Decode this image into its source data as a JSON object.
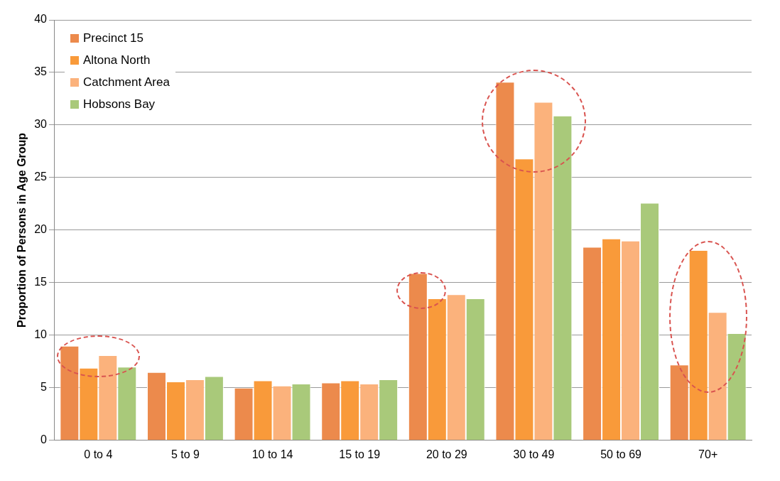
{
  "chart_data": {
    "type": "bar",
    "ylabel": "Proportion of Persons in Age Group",
    "categories": [
      "0 to 4",
      "5 to 9",
      "10 to 14",
      "15 to 19",
      "20 to 29",
      "30 to 49",
      "50 to 69",
      "70+"
    ],
    "series": [
      {
        "name": "Precinct 15",
        "color": "#ec8a4c",
        "values": [
          9.0,
          6.5,
          5.0,
          5.5,
          15.9,
          34.1,
          18.4,
          7.2
        ]
      },
      {
        "name": "Altona North",
        "color": "#f99a3a",
        "values": [
          6.9,
          5.6,
          5.7,
          5.7,
          13.5,
          26.8,
          19.2,
          18.1
        ]
      },
      {
        "name": "Catchment Area",
        "color": "#fbb27c",
        "values": [
          8.1,
          5.8,
          5.2,
          5.4,
          13.9,
          32.2,
          19.0,
          12.2
        ]
      },
      {
        "name": "Hobsons Bay",
        "color": "#a9c97a",
        "values": [
          7.0,
          6.1,
          5.4,
          5.8,
          13.5,
          30.9,
          22.6,
          10.2
        ]
      }
    ],
    "ylim": [
      0,
      40
    ],
    "yticks": [
      0,
      5,
      10,
      15,
      20,
      25,
      30,
      35,
      40
    ],
    "grid": "y",
    "legend": "top left"
  }
}
